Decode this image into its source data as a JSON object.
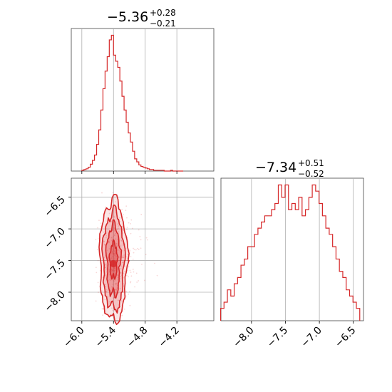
{
  "chart_data": [
    {
      "type": "histogram",
      "panel": "top-left",
      "title": {
        "median": "−5.36",
        "upper": "+0.28",
        "lower": "−0.21"
      },
      "xlim": [
        -6.2,
        -3.5
      ],
      "xticks": [
        -6.0,
        -5.4,
        -4.8,
        -4.2
      ],
      "grid": true,
      "color": "#d62728",
      "bins": {
        "x": [
          -5.98,
          -5.94,
          -5.9,
          -5.86,
          -5.82,
          -5.78,
          -5.74,
          -5.7,
          -5.66,
          -5.62,
          -5.58,
          -5.54,
          -5.5,
          -5.46,
          -5.42,
          -5.38,
          -5.34,
          -5.3,
          -5.26,
          -5.22,
          -5.18,
          -5.14,
          -5.1,
          -5.06,
          -5.02,
          -4.98,
          -4.94,
          -4.9,
          -4.86,
          -4.82,
          -4.78,
          -4.74,
          -4.7,
          -4.66,
          -4.62,
          -4.58,
          -4.54,
          -4.5,
          -4.46,
          -4.42,
          -4.38,
          -4.34,
          -4.3,
          -4.26,
          -4.22,
          -4.18,
          -4.14,
          -4.1
        ],
        "counts": [
          1,
          2,
          3,
          5,
          9,
          14,
          21,
          35,
          54,
          80,
          108,
          131,
          150,
          172,
          178,
          152,
          144,
          136,
          118,
          98,
          80,
          64,
          50,
          38,
          26,
          16,
          12,
          8,
          6,
          5,
          4,
          3,
          2,
          2,
          1,
          1,
          1,
          1,
          1,
          0,
          0,
          0,
          1,
          0,
          0,
          0,
          0,
          0
        ]
      }
    },
    {
      "type": "hist2d",
      "panel": "bottom-left",
      "xlim": [
        -6.2,
        -3.5
      ],
      "ylim": [
        -8.45,
        -6.2
      ],
      "xticks": [
        -6.0,
        -5.4,
        -4.8,
        -4.2
      ],
      "yticks": [
        -6.5,
        -7.0,
        -7.5,
        -8.0
      ],
      "grid": true,
      "color": "#d62728",
      "density_center": [
        -5.4,
        -7.5
      ],
      "x_range_samples": [
        -5.75,
        -4.85
      ],
      "y_range_samples": [
        -8.4,
        -6.35
      ]
    },
    {
      "type": "histogram",
      "panel": "bottom-right",
      "title": {
        "median": "−7.34",
        "upper": "+0.51",
        "lower": "−0.52"
      },
      "xlim": [
        -8.45,
        -6.35
      ],
      "xticks": [
        -8.0,
        -7.5,
        -7.0,
        -6.5
      ],
      "grid": true,
      "color": "#d62728",
      "bins": {
        "x": [
          -8.43,
          -8.38,
          -8.33,
          -8.28,
          -8.23,
          -8.18,
          -8.13,
          -8.08,
          -8.03,
          -7.98,
          -7.93,
          -7.88,
          -7.83,
          -7.78,
          -7.73,
          -7.68,
          -7.63,
          -7.58,
          -7.53,
          -7.48,
          -7.43,
          -7.38,
          -7.33,
          -7.28,
          -7.23,
          -7.18,
          -7.13,
          -7.08,
          -7.03,
          -6.98,
          -6.93,
          -6.88,
          -6.83,
          -6.78,
          -6.73,
          -6.68,
          -6.63,
          -6.58,
          -6.53,
          -6.48,
          -6.43
        ],
        "counts": [
          2,
          3,
          5,
          4,
          6,
          7,
          9,
          10,
          12,
          12,
          14,
          15,
          16,
          17,
          17,
          18,
          19,
          22,
          20,
          22,
          18,
          19,
          18,
          20,
          17,
          18,
          20,
          22,
          21,
          19,
          17,
          15,
          14,
          12,
          10,
          8,
          7,
          5,
          4,
          3,
          2
        ]
      }
    }
  ]
}
